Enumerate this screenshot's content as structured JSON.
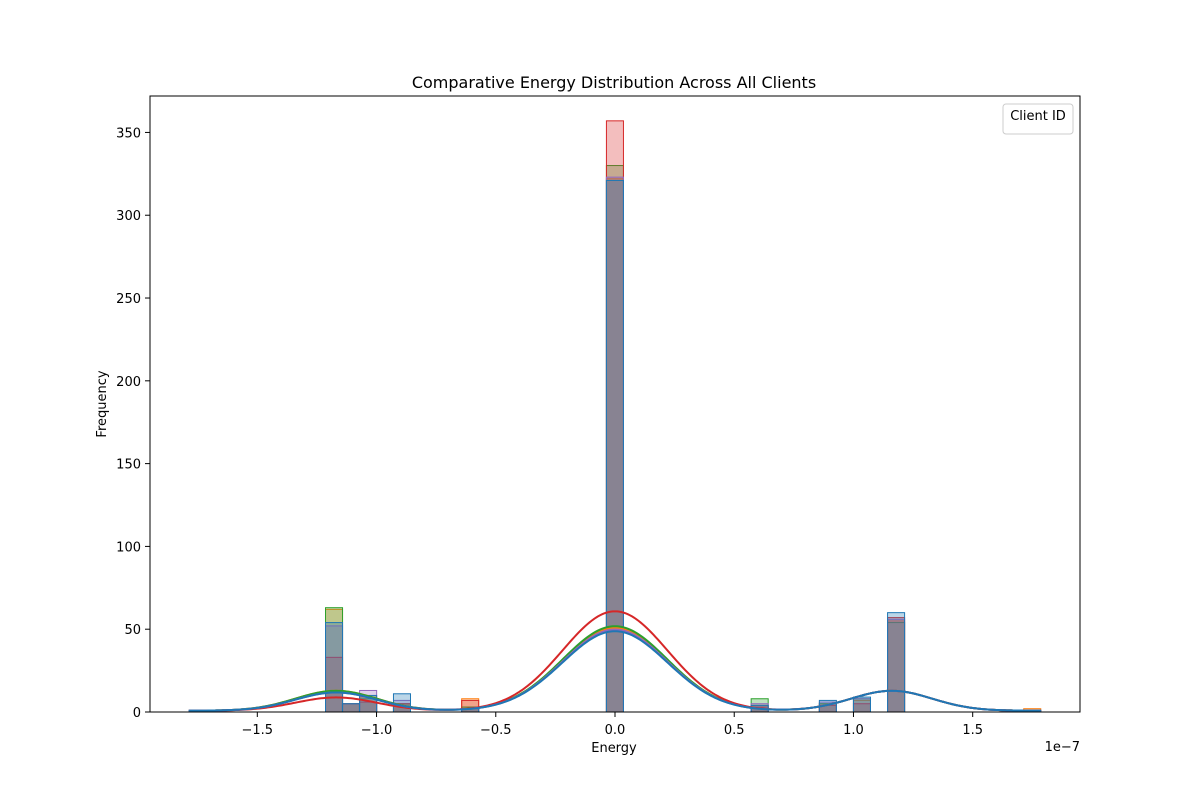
{
  "chart_data": {
    "type": "histogram",
    "title": "Comparative Energy Distribution Across All Clients",
    "xlabel": "Energy",
    "ylabel": "Frequency",
    "x_offset_text": "1e−7",
    "xlim": [
      -1.95,
      1.95
    ],
    "ylim": [
      0,
      372
    ],
    "xticks": [
      -1.5,
      -1.0,
      -0.5,
      0.0,
      0.5,
      1.0,
      1.5
    ],
    "xtick_labels": [
      "−1.5",
      "−1.0",
      "−0.5",
      "0.0",
      "0.5",
      "1.0",
      "1.5"
    ],
    "yticks": [
      0,
      50,
      100,
      150,
      200,
      250,
      300,
      350
    ],
    "ytick_labels": [
      "0",
      "50",
      "100",
      "150",
      "200",
      "250",
      "300",
      "350"
    ],
    "legend_title": "Client ID",
    "legend_position": "upper right",
    "grid": false,
    "bin_width": 0.0714,
    "series": [
      {
        "color": "#ff7f0e",
        "bars": [
          [
            -1.786,
            1
          ],
          [
            -1.214,
            62
          ],
          [
            -1.143,
            5
          ],
          [
            -1.071,
            9
          ],
          [
            -0.929,
            5
          ],
          [
            -0.643,
            8
          ],
          [
            -0.036,
            322
          ],
          [
            0.571,
            4
          ],
          [
            0.857,
            5
          ],
          [
            1.0,
            7
          ],
          [
            1.143,
            55
          ],
          [
            1.714,
            2
          ]
        ],
        "kde_peaks": {
          "center": 50,
          "left": 12,
          "right": 12
        }
      },
      {
        "color": "#2ca02c",
        "bars": [
          [
            -1.786,
            1
          ],
          [
            -1.214,
            63
          ],
          [
            -1.143,
            5
          ],
          [
            -1.071,
            8
          ],
          [
            -0.929,
            5
          ],
          [
            -0.643,
            3
          ],
          [
            -0.036,
            330
          ],
          [
            0.571,
            8
          ],
          [
            0.857,
            5
          ],
          [
            1.0,
            8
          ],
          [
            1.143,
            54
          ],
          [
            1.714,
            1
          ]
        ],
        "kde_peaks": {
          "center": 51,
          "left": 12,
          "right": 12
        }
      },
      {
        "color": "#d62728",
        "bars": [
          [
            -1.786,
            1
          ],
          [
            -1.214,
            33
          ],
          [
            -1.143,
            5
          ],
          [
            -1.071,
            6
          ],
          [
            -0.929,
            5
          ],
          [
            -0.643,
            7
          ],
          [
            -0.036,
            357
          ],
          [
            0.571,
            3
          ],
          [
            0.857,
            4
          ],
          [
            1.0,
            5
          ],
          [
            1.143,
            57
          ],
          [
            1.714,
            1
          ]
        ],
        "kde_peaks": {
          "center": 60,
          "left": 8,
          "right": 12
        }
      },
      {
        "color": "#9467bd",
        "bars": [
          [
            -1.786,
            1
          ],
          [
            -1.214,
            52
          ],
          [
            -1.143,
            5
          ],
          [
            -1.071,
            13
          ],
          [
            -0.929,
            7
          ],
          [
            -0.643,
            2
          ],
          [
            -0.036,
            323
          ],
          [
            0.571,
            5
          ],
          [
            0.857,
            6
          ],
          [
            1.0,
            8
          ],
          [
            1.143,
            56
          ],
          [
            1.714,
            1
          ]
        ],
        "kde_peaks": {
          "center": 49,
          "left": 11,
          "right": 12
        }
      },
      {
        "color": "#1f77b4",
        "bars": [
          [
            -1.786,
            1
          ],
          [
            -1.214,
            54
          ],
          [
            -1.143,
            5
          ],
          [
            -1.071,
            10
          ],
          [
            -0.929,
            11
          ],
          [
            -0.643,
            2
          ],
          [
            -0.036,
            321
          ],
          [
            0.571,
            4
          ],
          [
            0.857,
            7
          ],
          [
            1.0,
            9
          ],
          [
            1.143,
            60
          ],
          [
            1.714,
            1
          ]
        ],
        "kde_peaks": {
          "center": 48,
          "left": 11,
          "right": 12
        }
      }
    ]
  }
}
